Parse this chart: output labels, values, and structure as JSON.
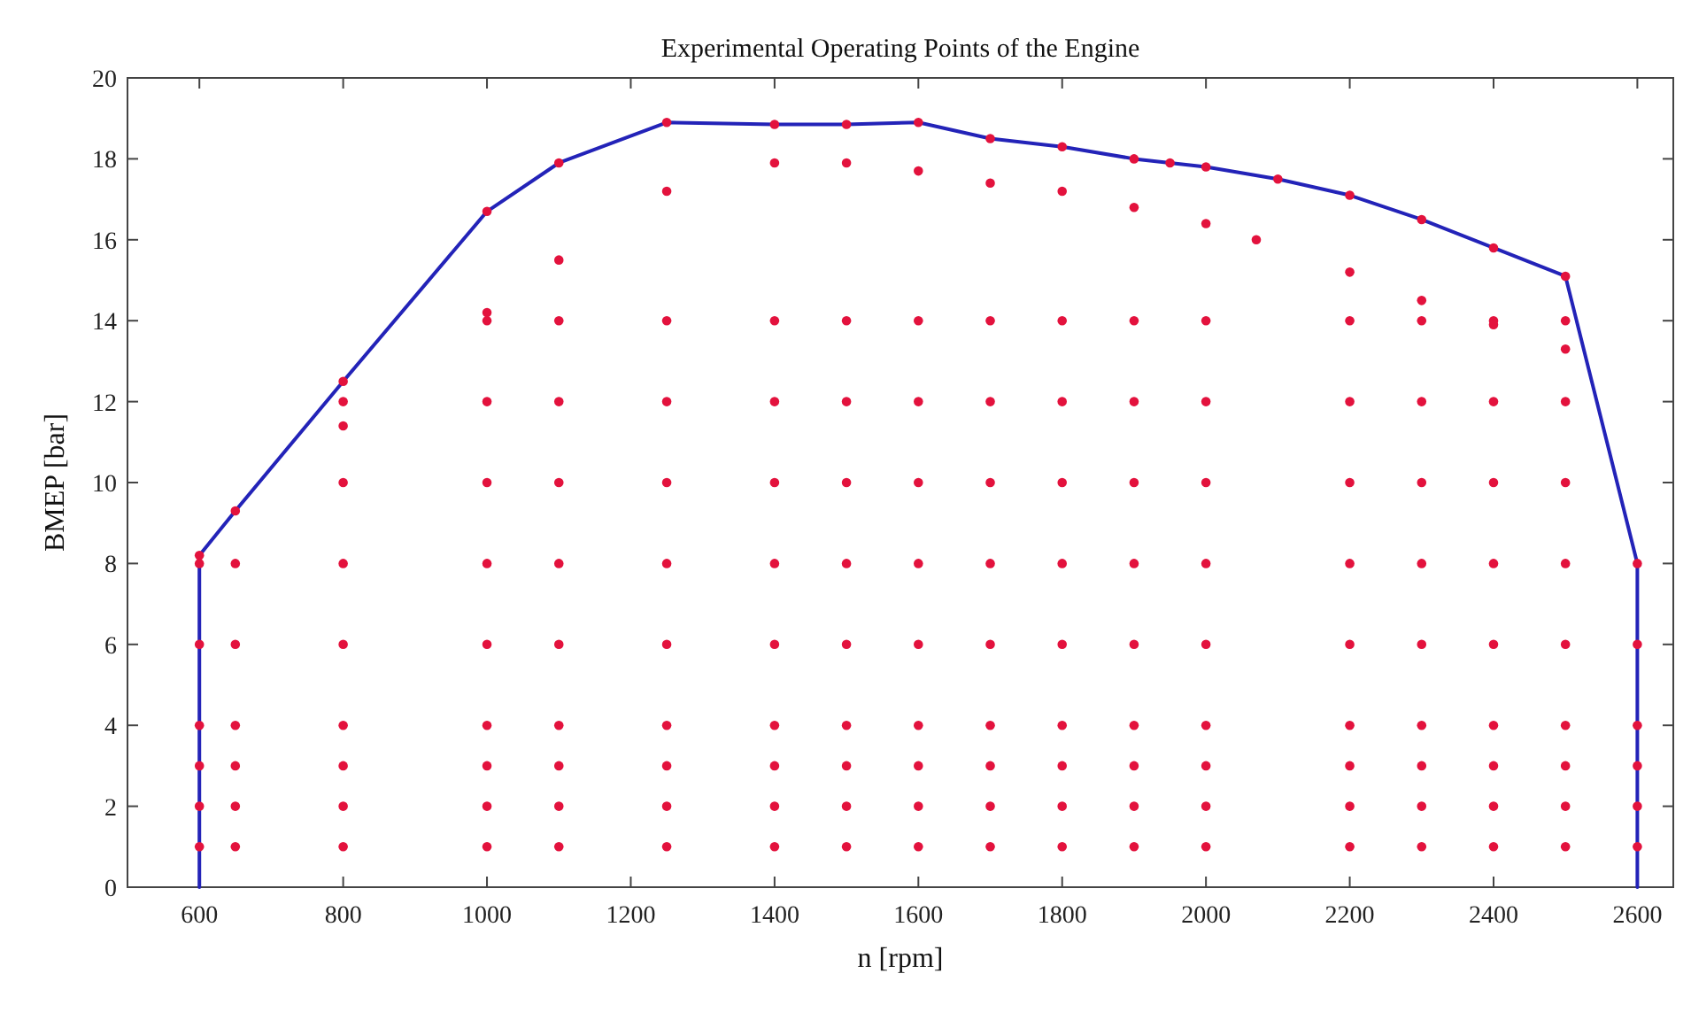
{
  "chart_data": {
    "type": "scatter",
    "title": "Experimental Operating Points of the Engine",
    "xlabel": "n [rpm]",
    "ylabel": "BMEP [bar]",
    "xlim": [
      500,
      2650
    ],
    "ylim": [
      0,
      20
    ],
    "xticks": [
      600,
      800,
      1000,
      1200,
      1400,
      1600,
      1800,
      2000,
      2200,
      2400,
      2600
    ],
    "yticks": [
      0,
      2,
      4,
      6,
      8,
      10,
      12,
      14,
      16,
      18,
      20
    ],
    "grid": false,
    "series": [
      {
        "type": "line",
        "color": "#2323b8",
        "line_style": "solid",
        "marker": "none",
        "x": [
          600,
          600,
          650,
          800,
          1000,
          1100,
          1250,
          1400,
          1500,
          1600,
          1700,
          1800,
          1900,
          1950,
          2000,
          2100,
          2200,
          2300,
          2400,
          2500,
          2600,
          2600
        ],
        "values": [
          0,
          8.2,
          9.3,
          12.5,
          16.7,
          17.9,
          18.9,
          18.85,
          18.85,
          18.9,
          18.5,
          18.3,
          18.0,
          17.9,
          17.8,
          17.5,
          17.1,
          16.5,
          15.8,
          15.1,
          8,
          0
        ]
      },
      {
        "color": "#e3123d",
        "marker": "circle",
        "x": [
          600,
          600,
          600,
          600,
          600,
          600,
          600,
          650,
          650,
          650,
          650,
          650,
          650,
          650,
          800,
          800,
          800,
          800,
          800,
          800,
          800,
          800,
          800,
          800,
          1000,
          1000,
          1000,
          1000,
          1000,
          1000,
          1000,
          1000,
          1000,
          1000,
          1000,
          1100,
          1100,
          1100,
          1100,
          1100,
          1100,
          1100,
          1100,
          1100,
          1100,
          1100,
          1250,
          1250,
          1250,
          1250,
          1250,
          1250,
          1250,
          1250,
          1250,
          1250,
          1250,
          1400,
          1400,
          1400,
          1400,
          1400,
          1400,
          1400,
          1400,
          1400,
          1400,
          1400,
          1500,
          1500,
          1500,
          1500,
          1500,
          1500,
          1500,
          1500,
          1500,
          1500,
          1500,
          1600,
          1600,
          1600,
          1600,
          1600,
          1600,
          1600,
          1600,
          1600,
          1600,
          1600,
          1700,
          1700,
          1700,
          1700,
          1700,
          1700,
          1700,
          1700,
          1700,
          1700,
          1700,
          1800,
          1800,
          1800,
          1800,
          1800,
          1800,
          1800,
          1800,
          1800,
          1800,
          1800,
          1900,
          1900,
          1900,
          1900,
          1900,
          1900,
          1900,
          1900,
          1900,
          1900,
          1900,
          1950,
          2000,
          2000,
          2000,
          2000,
          2000,
          2000,
          2000,
          2000,
          2000,
          2000,
          2000,
          2070,
          2100,
          2200,
          2200,
          2200,
          2200,
          2200,
          2200,
          2200,
          2200,
          2200,
          2200,
          2200,
          2300,
          2300,
          2300,
          2300,
          2300,
          2300,
          2300,
          2300,
          2300,
          2300,
          2300,
          2400,
          2400,
          2400,
          2400,
          2400,
          2400,
          2400,
          2400,
          2400,
          2400,
          2400,
          2500,
          2500,
          2500,
          2500,
          2500,
          2500,
          2500,
          2500,
          2500,
          2500,
          2500,
          2600,
          2600,
          2600,
          2600,
          2600,
          2600
        ],
        "values": [
          1,
          2,
          3,
          4,
          6,
          8,
          8.2,
          1,
          2,
          3,
          4,
          6,
          8,
          9.3,
          1,
          2,
          3,
          4,
          6,
          8,
          10,
          11.4,
          12,
          12.5,
          1,
          2,
          3,
          4,
          6,
          8,
          10,
          12,
          14,
          14.2,
          16.7,
          1,
          2,
          3,
          4,
          6,
          8,
          10,
          12,
          14,
          15.5,
          17.9,
          1,
          2,
          3,
          4,
          6,
          8,
          10,
          12,
          14,
          17.2,
          18.9,
          1,
          2,
          3,
          4,
          6,
          8,
          10,
          12,
          14,
          17.9,
          18.85,
          1,
          2,
          3,
          4,
          6,
          8,
          10,
          12,
          14,
          17.9,
          18.85,
          1,
          2,
          3,
          4,
          6,
          8,
          10,
          12,
          14,
          17.7,
          18.9,
          1,
          2,
          3,
          4,
          6,
          8,
          10,
          12,
          14,
          17.4,
          18.5,
          1,
          2,
          3,
          4,
          6,
          8,
          10,
          12,
          14,
          17.2,
          18.3,
          1,
          2,
          3,
          4,
          6,
          8,
          10,
          12,
          14,
          16.8,
          18.0,
          17.9,
          1,
          2,
          3,
          4,
          6,
          8,
          10,
          12,
          14,
          16.4,
          17.8,
          16.0,
          17.5,
          1,
          2,
          3,
          4,
          6,
          8,
          10,
          12,
          14,
          15.2,
          17.1,
          1,
          2,
          3,
          4,
          6,
          8,
          10,
          12,
          14,
          14.5,
          16.5,
          1,
          2,
          3,
          4,
          6,
          8,
          10,
          12,
          14,
          13.9,
          15.8,
          1,
          2,
          3,
          4,
          6,
          8,
          10,
          12,
          14,
          13.3,
          15.1,
          1,
          2,
          3,
          4,
          6,
          8
        ]
      }
    ]
  }
}
